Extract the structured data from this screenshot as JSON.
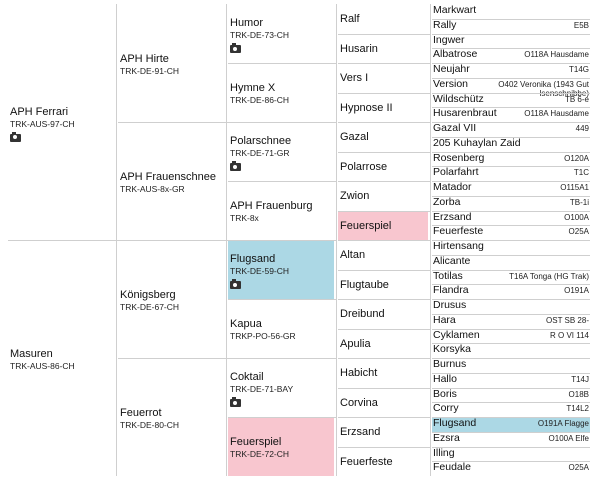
{
  "generation1": [
    {
      "name": "APH Ferrari",
      "reg": "TRK-AUS-97-CH",
      "photo": true
    },
    {
      "name": "Masuren",
      "reg": "TRK-AUS-86-CH",
      "photo": false
    }
  ],
  "generation2": [
    {
      "name": "APH Hirte",
      "reg": "TRK-DE-91-CH"
    },
    {
      "name": "APH Frauenschnee",
      "reg": "TRK-AUS-8x-GR"
    },
    {
      "name": "Königsberg",
      "reg": "TRK-DE-67-CH"
    },
    {
      "name": "Feuerrot",
      "reg": "TRK-DE-80-CH"
    }
  ],
  "generation3": [
    {
      "name": "Humor",
      "reg": "TRK-DE-73-CH",
      "photo": true
    },
    {
      "name": "Hymne X",
      "reg": "TRK-DE-86-CH"
    },
    {
      "name": "Polarschnee",
      "reg": "TRK-DE-71-GR",
      "photo": true
    },
    {
      "name": "APH Frauenburg",
      "reg": "TRK-8x"
    },
    {
      "name": "Flugsand",
      "reg": "TRK-DE-59-CH",
      "photo": true,
      "highlight": "#acd8e5"
    },
    {
      "name": "Kapua",
      "reg": "TRKP-PO-56-GR"
    },
    {
      "name": "Coktail",
      "reg": "TRK-DE-71-BAY",
      "photo": true
    },
    {
      "name": "Feuerspiel",
      "reg": "TRK-DE-72-CH",
      "highlight": "#f8c6cf"
    }
  ],
  "generation4": [
    {
      "name": "Ralf"
    },
    {
      "name": "Husarin"
    },
    {
      "name": "Vers I"
    },
    {
      "name": "Hypnose II"
    },
    {
      "name": "Gazal"
    },
    {
      "name": "Polarrose"
    },
    {
      "name": "Zwion"
    },
    {
      "name": "Feuerspiel",
      "highlight": "#f8c6cf"
    },
    {
      "name": "Altan"
    },
    {
      "name": "Flugtaube"
    },
    {
      "name": "Dreibund"
    },
    {
      "name": "Apulia"
    },
    {
      "name": "Habicht"
    },
    {
      "name": "Corvina"
    },
    {
      "name": "Erzsand"
    },
    {
      "name": "Feuerfeste"
    }
  ],
  "generation5": [
    {
      "name": "Markwart",
      "reg": ""
    },
    {
      "name": "Rally",
      "reg": "E5B"
    },
    {
      "name": "Ingwer",
      "reg": ""
    },
    {
      "name": "Albatrose",
      "reg": "O118A Hausdame"
    },
    {
      "name": "Neujahr",
      "reg": "T14G"
    },
    {
      "name": "Version",
      "reg": "O402 Veronika (1943 Gut Isenschnibbe)"
    },
    {
      "name": "Wildschütz",
      "reg": "TB 6-e"
    },
    {
      "name": "Husarenbraut",
      "reg": "O118A Hausdame"
    },
    {
      "name": "Gazal VII",
      "reg": "449"
    },
    {
      "name": "205 Kuhaylan Zaid",
      "reg": ""
    },
    {
      "name": "Rosenberg",
      "reg": "O120A"
    },
    {
      "name": "Polarfahrt",
      "reg": "T1C"
    },
    {
      "name": "Matador",
      "reg": "O115A1"
    },
    {
      "name": "Zorba",
      "reg": "TB-1i"
    },
    {
      "name": "Erzsand",
      "reg": "O100A"
    },
    {
      "name": "Feuerfeste",
      "reg": "O25A"
    },
    {
      "name": "Hirtensang",
      "reg": ""
    },
    {
      "name": "Alicante",
      "reg": ""
    },
    {
      "name": "Totilas",
      "reg": "T16A Tonga (HG Trak)"
    },
    {
      "name": "Flandra",
      "reg": "O191A"
    },
    {
      "name": "Drusus",
      "reg": ""
    },
    {
      "name": "Hara",
      "reg": "OST SB 28-"
    },
    {
      "name": "Cyklamen",
      "reg": "R O VI 114"
    },
    {
      "name": "Korsyka",
      "reg": ""
    },
    {
      "name": "Burnus",
      "reg": ""
    },
    {
      "name": "Hallo",
      "reg": "T14J"
    },
    {
      "name": "Boris",
      "reg": "O18B"
    },
    {
      "name": "Corry",
      "reg": "T14L2"
    },
    {
      "name": "Flugsand",
      "reg": "O191A Flagge",
      "highlight": "#acd8e5"
    },
    {
      "name": "Ezsra",
      "reg": "O100A Elfe"
    },
    {
      "name": "Illing",
      "reg": ""
    },
    {
      "name": "Feudale",
      "reg": "O25A"
    }
  ]
}
